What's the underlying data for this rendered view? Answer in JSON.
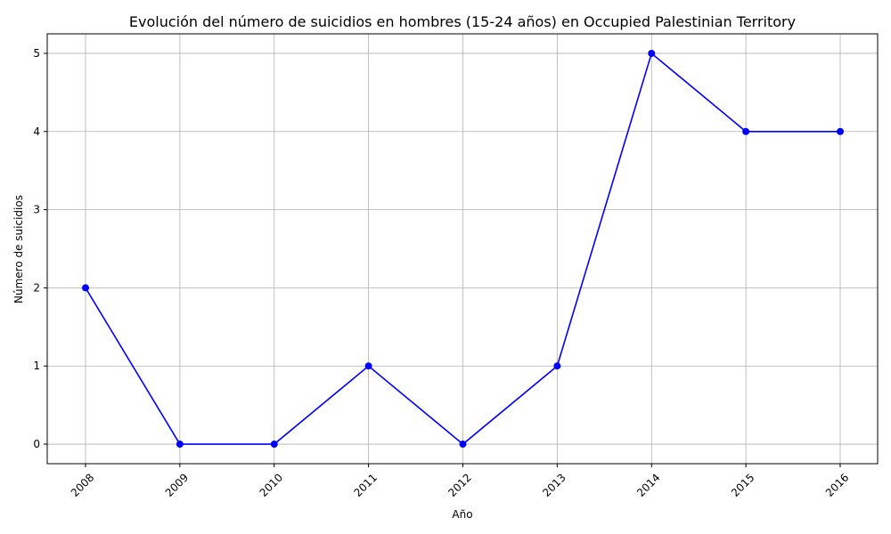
{
  "chart_data": {
    "type": "line",
    "title": "Evolución del número de suicidios en hombres (15-24 años) en Occupied Palestinian Territory",
    "xlabel": "Año",
    "ylabel": "Número de suicidios",
    "x": [
      "2008",
      "2009",
      "2010",
      "2011",
      "2012",
      "2013",
      "2014",
      "2015",
      "2016"
    ],
    "series": [
      {
        "values": [
          2,
          0,
          0,
          1,
          0,
          1,
          5,
          4,
          4
        ],
        "color": "#0000ff",
        "marker": "circle"
      }
    ],
    "yticks": [
      "0",
      "1",
      "2",
      "3",
      "4",
      "5"
    ],
    "ylim": [
      -0.25,
      5.25
    ],
    "grid": true,
    "legend": "none",
    "xtick_rotation_deg": 45
  }
}
